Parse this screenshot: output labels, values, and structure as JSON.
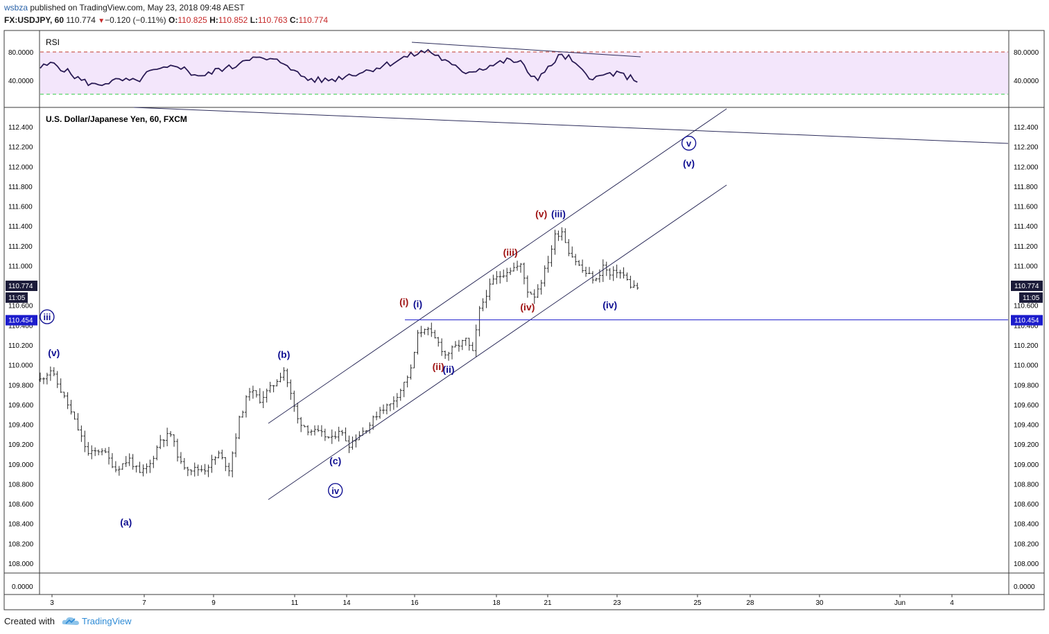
{
  "header": {
    "user": "wsbza",
    "published_text": " published on TradingView.com, May 23, 2018 09:48 AEST",
    "symbol": "FX:USDJPY, 60",
    "last": "110.774",
    "change": "−0.120 (−0.11%)",
    "o_label": "O:",
    "o": "110.825",
    "h_label": "H:",
    "h": "110.852",
    "l_label": "L:",
    "l": "110.763",
    "c_label": "C:",
    "c": "110.774"
  },
  "footer": {
    "created_with": "Created with",
    "brand": "TradingView"
  },
  "colors": {
    "bars": "#2b2b2b",
    "rsi_line": "#2a1b55",
    "rsi_band": "#f3e6fb",
    "rsi_upper": "#c0392b",
    "rsi_lower": "#2ecc40",
    "trend": "#2c2c5a",
    "hline": "#1c1ccc",
    "wave_blue": "#101092",
    "wave_red": "#a01414",
    "axis_tag": "#1c1c3a"
  },
  "rsi": {
    "label": "RSI",
    "y_ticks": [
      "80.0000",
      "40.0000"
    ],
    "levels": [
      80,
      40
    ]
  },
  "chart_data": {
    "type": "bar",
    "title": "U.S. Dollar/Japanese Yen, 60, FXCM",
    "x_ticks": [
      "3",
      "7",
      "9",
      "11",
      "14",
      "16",
      "18",
      "21",
      "23",
      "25",
      "28",
      "30",
      "Jun",
      "4"
    ],
    "y_ticks": [
      "112.400",
      "112.200",
      "112.000",
      "111.800",
      "111.600",
      "111.400",
      "111.200",
      "111.000",
      "110.800",
      "110.600",
      "110.400",
      "110.200",
      "110.000",
      "109.800",
      "109.600",
      "109.400",
      "109.200",
      "109.000",
      "108.800",
      "108.600",
      "108.400",
      "108.200",
      "108.000"
    ],
    "ylim": [
      107.9,
      112.6
    ],
    "price_anchors": [
      [
        0,
        109.85
      ],
      [
        3,
        109.95
      ],
      [
        8,
        109.6
      ],
      [
        14,
        109.1
      ],
      [
        18,
        109.15
      ],
      [
        22,
        108.95
      ],
      [
        26,
        109.05
      ],
      [
        29,
        108.9
      ],
      [
        32,
        109.0
      ],
      [
        35,
        109.25
      ],
      [
        38,
        109.3
      ],
      [
        41,
        109.0
      ],
      [
        44,
        108.95
      ],
      [
        48,
        108.95
      ],
      [
        52,
        109.1
      ],
      [
        55,
        108.95
      ],
      [
        58,
        109.45
      ],
      [
        61,
        109.75
      ],
      [
        64,
        109.65
      ],
      [
        68,
        109.8
      ],
      [
        71,
        109.95
      ],
      [
        73,
        109.7
      ],
      [
        75,
        109.45
      ],
      [
        78,
        109.35
      ],
      [
        82,
        109.3
      ],
      [
        85,
        109.25
      ],
      [
        87,
        109.35
      ],
      [
        90,
        109.2
      ],
      [
        93,
        109.3
      ],
      [
        96,
        109.4
      ],
      [
        99,
        109.55
      ],
      [
        102,
        109.6
      ],
      [
        105,
        109.75
      ],
      [
        108,
        109.95
      ],
      [
        110,
        110.3
      ],
      [
        112,
        110.38
      ],
      [
        114,
        110.3
      ],
      [
        116,
        110.22
      ],
      [
        118,
        110.1
      ],
      [
        121,
        110.18
      ],
      [
        124,
        110.25
      ],
      [
        126,
        110.12
      ],
      [
        128,
        110.55
      ],
      [
        130,
        110.72
      ],
      [
        132,
        110.85
      ],
      [
        134,
        110.9
      ],
      [
        136,
        110.95
      ],
      [
        138,
        110.98
      ],
      [
        140,
        111.0
      ],
      [
        142,
        110.75
      ],
      [
        144,
        110.7
      ],
      [
        146,
        110.85
      ],
      [
        148,
        111.05
      ],
      [
        150,
        111.3
      ],
      [
        152,
        111.35
      ],
      [
        154,
        111.15
      ],
      [
        156,
        111.05
      ],
      [
        158,
        110.95
      ],
      [
        160,
        110.9
      ],
      [
        162,
        110.85
      ],
      [
        164,
        111.0
      ],
      [
        166,
        110.9
      ],
      [
        168,
        110.95
      ],
      [
        170,
        110.9
      ],
      [
        172,
        110.8
      ],
      [
        174,
        110.78
      ]
    ],
    "rsi_anchors": [
      [
        0,
        58
      ],
      [
        4,
        64
      ],
      [
        8,
        52
      ],
      [
        12,
        40
      ],
      [
        16,
        33
      ],
      [
        20,
        38
      ],
      [
        24,
        40
      ],
      [
        28,
        38
      ],
      [
        32,
        52
      ],
      [
        36,
        55
      ],
      [
        40,
        62
      ],
      [
        44,
        50
      ],
      [
        48,
        46
      ],
      [
        52,
        56
      ],
      [
        56,
        58
      ],
      [
        60,
        72
      ],
      [
        64,
        70
      ],
      [
        68,
        68
      ],
      [
        72,
        64
      ],
      [
        74,
        52
      ],
      [
        78,
        42
      ],
      [
        82,
        40
      ],
      [
        86,
        42
      ],
      [
        90,
        48
      ],
      [
        94,
        52
      ],
      [
        98,
        58
      ],
      [
        102,
        64
      ],
      [
        106,
        72
      ],
      [
        110,
        78
      ],
      [
        113,
        82
      ],
      [
        116,
        74
      ],
      [
        120,
        60
      ],
      [
        124,
        52
      ],
      [
        128,
        56
      ],
      [
        132,
        62
      ],
      [
        136,
        68
      ],
      [
        140,
        66
      ],
      [
        142,
        50
      ],
      [
        145,
        44
      ],
      [
        148,
        56
      ],
      [
        151,
        74
      ],
      [
        154,
        72
      ],
      [
        157,
        56
      ],
      [
        160,
        46
      ],
      [
        163,
        44
      ],
      [
        166,
        50
      ],
      [
        169,
        48
      ],
      [
        172,
        44
      ],
      [
        174,
        40
      ]
    ],
    "current_price_tag": "110.774",
    "countdown_tag": "11:05",
    "level_tag": "110.454",
    "level_value": 110.454,
    "bottom_value_tag": "0.0000",
    "wave_labels": [
      {
        "text": "(v)",
        "color": "blue",
        "bar": 4,
        "price": 110.09
      },
      {
        "text": "(a)",
        "color": "blue",
        "bar": 25,
        "price": 108.38
      },
      {
        "text": "(b)",
        "color": "blue",
        "bar": 71,
        "price": 110.07
      },
      {
        "text": "(c)",
        "color": "blue",
        "bar": 86,
        "price": 109.0
      },
      {
        "text": "iv",
        "color": "blue",
        "circled": true,
        "bar": 86,
        "price": 108.7
      },
      {
        "text": "iii",
        "color": "blue",
        "circled": true,
        "bar": 2,
        "price": 110.45
      },
      {
        "text": "(i)",
        "color": "red",
        "bar": 106,
        "price": 110.6
      },
      {
        "text": "(i)",
        "color": "blue",
        "bar": 110,
        "price": 110.58
      },
      {
        "text": "(ii)",
        "color": "red",
        "bar": 116,
        "price": 109.95
      },
      {
        "text": "(ii)",
        "color": "blue",
        "bar": 119,
        "price": 109.92
      },
      {
        "text": "(iii)",
        "color": "red",
        "bar": 137,
        "price": 111.1
      },
      {
        "text": "(iv)",
        "color": "red",
        "bar": 142,
        "price": 110.55
      },
      {
        "text": "(v)",
        "color": "red",
        "bar": 146,
        "price": 111.49
      },
      {
        "text": "(iii)",
        "color": "blue",
        "bar": 151,
        "price": 111.49
      },
      {
        "text": "(iv)",
        "color": "blue",
        "bar": 166,
        "price": 110.57
      },
      {
        "text": "v",
        "color": "blue",
        "circled": true,
        "bar": 189,
        "price": 112.2
      },
      {
        "text": "(v)",
        "color": "blue",
        "bar": 189,
        "price": 112.0
      }
    ]
  }
}
